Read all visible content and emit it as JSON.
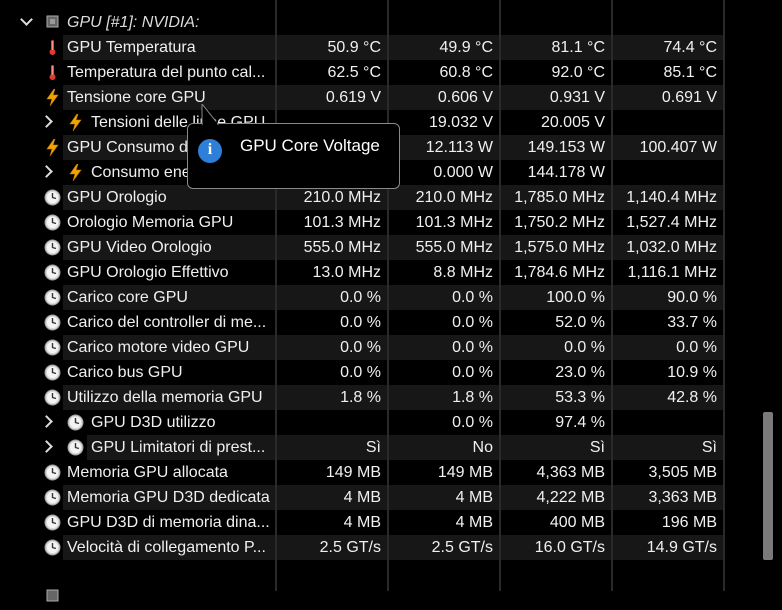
{
  "header": {
    "label": "GPU [#1]: NVIDIA:"
  },
  "tooltip": {
    "text": "GPU Core Voltage"
  },
  "rows": [
    {
      "icon": "thermometer-icon",
      "label": "GPU Temperatura",
      "v1": "50.9 °C",
      "v2": "49.9 °C",
      "v3": "81.1 °C",
      "v4": "74.4 °C"
    },
    {
      "icon": "thermometer-icon",
      "label": "Temperatura del punto cal...",
      "v1": "62.5 °C",
      "v2": "60.8 °C",
      "v3": "92.0 °C",
      "v4": "85.1 °C"
    },
    {
      "icon": "lightning-icon",
      "label": "Tensione core GPU",
      "v1": "0.619 V",
      "v2": "0.606 V",
      "v3": "0.931 V",
      "v4": "0.691 V"
    },
    {
      "icon": "lightning-icon",
      "label": "Tensioni delle linee GPU",
      "v1": "",
      "v2": "19.032 V",
      "v3": "20.005 V",
      "v4": "",
      "sub": true
    },
    {
      "icon": "lightning-icon",
      "label": "GPU Consumo di energia",
      "v1": "",
      "v2": "12.113 W",
      "v3": "149.153 W",
      "v4": "100.407 W"
    },
    {
      "icon": "lightning-icon",
      "label": "Consumo energetico de...",
      "v1": "",
      "v2": "0.000 W",
      "v3": "144.178 W",
      "v4": "",
      "sub": true
    },
    {
      "icon": "clock-icon",
      "label": "GPU Orologio",
      "v1": "210.0 MHz",
      "v2": "210.0 MHz",
      "v3": "1,785.0 MHz",
      "v4": "1,140.4 MHz"
    },
    {
      "icon": "clock-icon",
      "label": "Orologio Memoria GPU",
      "v1": "101.3 MHz",
      "v2": "101.3 MHz",
      "v3": "1,750.2 MHz",
      "v4": "1,527.4 MHz"
    },
    {
      "icon": "clock-icon",
      "label": "GPU Video Orologio",
      "v1": "555.0 MHz",
      "v2": "555.0 MHz",
      "v3": "1,575.0 MHz",
      "v4": "1,032.0 MHz"
    },
    {
      "icon": "clock-icon",
      "label": "GPU Orologio Effettivo",
      "v1": "13.0 MHz",
      "v2": "8.8 MHz",
      "v3": "1,784.6 MHz",
      "v4": "1,116.1 MHz"
    },
    {
      "icon": "clock-icon",
      "label": "Carico core GPU",
      "v1": "0.0 %",
      "v2": "0.0 %",
      "v3": "100.0 %",
      "v4": "90.0 %"
    },
    {
      "icon": "clock-icon",
      "label": "Carico del controller di me...",
      "v1": "0.0 %",
      "v2": "0.0 %",
      "v3": "52.0 %",
      "v4": "33.7 %"
    },
    {
      "icon": "clock-icon",
      "label": "Carico motore video GPU",
      "v1": "0.0 %",
      "v2": "0.0 %",
      "v3": "0.0 %",
      "v4": "0.0 %"
    },
    {
      "icon": "clock-icon",
      "label": "Carico bus GPU",
      "v1": "0.0 %",
      "v2": "0.0 %",
      "v3": "23.0 %",
      "v4": "10.9 %"
    },
    {
      "icon": "clock-icon",
      "label": "Utilizzo della memoria GPU",
      "v1": "1.8 %",
      "v2": "1.8 %",
      "v3": "53.3 %",
      "v4": "42.8 %"
    },
    {
      "icon": "clock-icon",
      "label": "GPU D3D utilizzo",
      "v1": "",
      "v2": "0.0 %",
      "v3": "97.4 %",
      "v4": "",
      "sub": true
    },
    {
      "icon": "clock-icon",
      "label": "GPU Limitatori di prest...",
      "v1": "Sì",
      "v2": "No",
      "v3": "Sì",
      "v4": "Sì",
      "sub": true
    },
    {
      "icon": "clock-icon",
      "label": "Memoria GPU allocata",
      "v1": "149 MB",
      "v2": "149 MB",
      "v3": "4,363 MB",
      "v4": "3,505 MB"
    },
    {
      "icon": "clock-icon",
      "label": "Memoria GPU D3D dedicata",
      "v1": "4 MB",
      "v2": "4 MB",
      "v3": "4,222 MB",
      "v4": "3,363 MB"
    },
    {
      "icon": "clock-icon",
      "label": "GPU D3D di memoria dina...",
      "v1": "4 MB",
      "v2": "4 MB",
      "v3": "400 MB",
      "v4": "196 MB"
    },
    {
      "icon": "clock-icon",
      "label": "Velocità di collegamento P...",
      "v1": "2.5 GT/s",
      "v2": "2.5 GT/s",
      "v3": "16.0 GT/s",
      "v4": "14.9 GT/s"
    }
  ]
}
